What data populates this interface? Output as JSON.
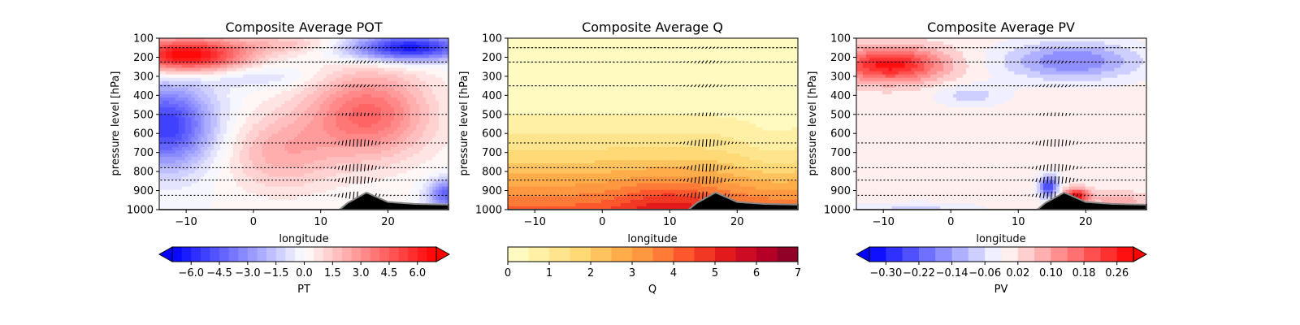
{
  "chart_data": [
    {
      "type": "heatmap",
      "title": "Composite Average POT",
      "xlabel": "longitude",
      "ylabel": "pressure level [hPa]",
      "xlim": [
        -14,
        29
      ],
      "ylim": [
        1000,
        100
      ],
      "xticks": [
        -10,
        0,
        10,
        20
      ],
      "yticks": [
        100,
        200,
        300,
        400,
        500,
        600,
        700,
        800,
        900,
        1000
      ],
      "colorbar": {
        "label": "PT",
        "colormap": "bwr",
        "range": [
          -7,
          7
        ],
        "levels": 28,
        "extend": "both",
        "ticks": [
          "−6.0",
          "−4.5",
          "−3.0",
          "−1.5",
          "0.0",
          "1.5",
          "3.0",
          "4.5",
          "6.0"
        ],
        "tick_values": [
          -6,
          -4.5,
          -3,
          -1.5,
          0,
          1.5,
          3,
          4.5,
          6
        ]
      },
      "features": [
        {
          "lon": -10,
          "p": 190,
          "value": 7
        },
        {
          "lon": 22,
          "p": 160,
          "value": -6
        },
        {
          "lon": -12,
          "p": 550,
          "value": -5
        },
        {
          "lon": 17,
          "p": 480,
          "value": 4
        },
        {
          "lon": 28,
          "p": 900,
          "value": -4
        }
      ]
    },
    {
      "type": "heatmap",
      "title": "Composite Average Q",
      "xlabel": "longitude",
      "ylabel": "pressure level [hPa]",
      "xlim": [
        -14,
        29
      ],
      "ylim": [
        1000,
        100
      ],
      "xticks": [
        -10,
        0,
        10,
        20
      ],
      "yticks": [
        100,
        200,
        300,
        400,
        500,
        600,
        700,
        800,
        900,
        1000
      ],
      "colorbar": {
        "label": "Q",
        "colormap": "YlOrRd",
        "range": [
          0,
          7
        ],
        "levels": 14,
        "extend": "neither",
        "ticks": [
          "0",
          "1",
          "2",
          "3",
          "4",
          "5",
          "6",
          "7"
        ],
        "tick_values": [
          0,
          1,
          2,
          3,
          4,
          5,
          6,
          7
        ]
      },
      "features": [
        {
          "lon": 10,
          "p": 980,
          "value": 5.2
        }
      ]
    },
    {
      "type": "heatmap",
      "title": "Composite Average PV",
      "xlabel": "longitude",
      "ylabel": "pressure level [hPa]",
      "xlim": [
        -14,
        29
      ],
      "ylim": [
        1000,
        100
      ],
      "xticks": [
        -10,
        0,
        10,
        20
      ],
      "yticks": [
        100,
        200,
        300,
        400,
        500,
        600,
        700,
        800,
        900,
        1000
      ],
      "colorbar": {
        "label": "PV",
        "colormap": "bwr",
        "range": [
          -0.34,
          0.3
        ],
        "levels": 16,
        "extend": "both",
        "ticks": [
          "−0.30",
          "−0.22",
          "−0.14",
          "−0.06",
          "0.02",
          "0.10",
          "0.18",
          "0.26"
        ],
        "tick_values": [
          -0.3,
          -0.22,
          -0.14,
          -0.06,
          0.02,
          0.1,
          0.18,
          0.26
        ]
      },
      "features": [
        {
          "lon": -8,
          "p": 230,
          "value": 0.28
        },
        {
          "lon": 18,
          "p": 200,
          "value": -0.18
        },
        {
          "lon": 18,
          "p": 930,
          "value": 0.26
        },
        {
          "lon": 15,
          "p": 880,
          "value": -0.22
        }
      ]
    }
  ],
  "wind_levels": [
    150,
    225,
    350,
    500,
    650,
    780,
    845,
    925
  ],
  "colors": {
    "terrain_fill": "#000000",
    "terrain_edge": "#888888",
    "vector_color": "#000000"
  }
}
